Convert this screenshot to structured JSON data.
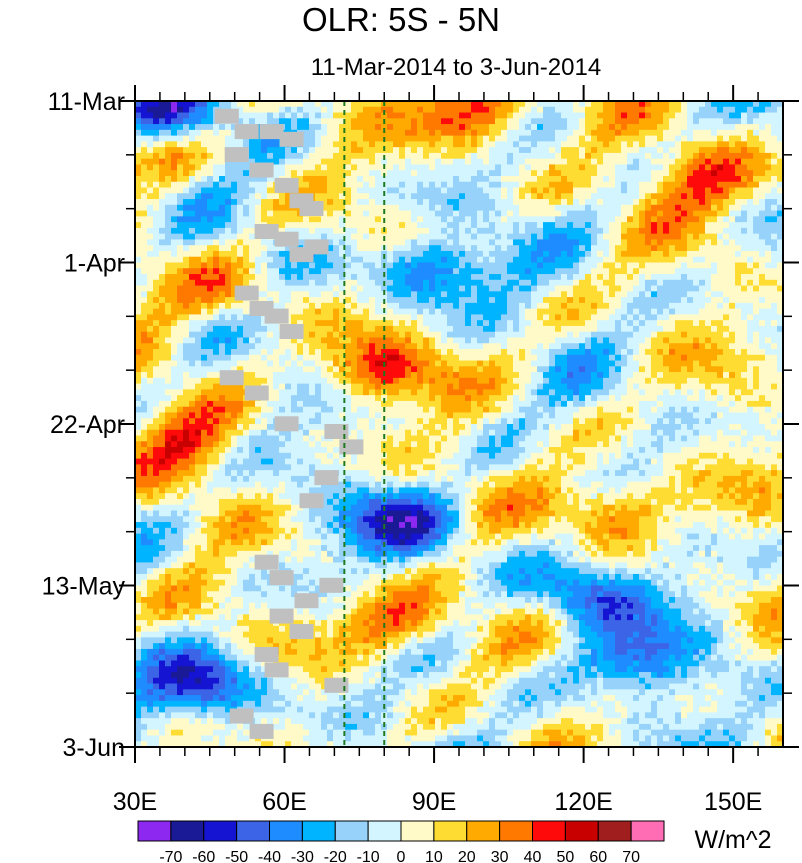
{
  "chart_data": {
    "type": "heatmap",
    "title": "OLR: 5S - 5N",
    "subtitle": "11-Mar-2014 to 3-Jun-2014",
    "x_axis": {
      "range": [
        30,
        160
      ],
      "ticks": [
        30,
        60,
        90,
        120,
        150
      ],
      "tick_labels": [
        "30E",
        "60E",
        "90E",
        "120E",
        "150E"
      ],
      "minor_ticks": [
        35,
        40,
        45,
        50,
        55,
        65,
        70,
        75,
        80,
        85,
        95,
        100,
        105,
        110,
        115,
        125,
        130,
        135,
        140,
        145,
        155
      ]
    },
    "y_axis": {
      "range_days": [
        0,
        84
      ],
      "direction": "time increases downward",
      "ticks": [
        0,
        21,
        42,
        63,
        84
      ],
      "tick_labels": [
        "11-Mar",
        "1-Apr",
        "22-Apr",
        "13-May",
        "3-Jun"
      ],
      "minor_ticks": [
        7,
        14,
        28,
        35,
        49,
        56,
        70,
        77
      ]
    },
    "reference_lines": [
      {
        "longitude": 72,
        "style": "dashed",
        "color": "#1e7a1e"
      },
      {
        "longitude": 80,
        "style": "dashed",
        "color": "#1e7a1e"
      }
    ],
    "colorbar": {
      "label": "W/m^2",
      "levels": [
        -70,
        -60,
        -50,
        -40,
        -30,
        -20,
        -10,
        0,
        10,
        20,
        30,
        40,
        50,
        60,
        70
      ],
      "level_labels": [
        "-70",
        "-60",
        "-50",
        "-40",
        "-30",
        "-20",
        "-10",
        "0",
        "10",
        "20",
        "30",
        "40",
        "50",
        "60",
        "70"
      ],
      "colors": [
        "#8c28f0",
        "#1a1a96",
        "#1414d2",
        "#3c64e6",
        "#1e8cff",
        "#00b4ff",
        "#96d2fa",
        "#d2f5ff",
        "#fffac8",
        "#ffdc32",
        "#ffaa00",
        "#ff7800",
        "#ff0a0a",
        "#c80000",
        "#a01e1e",
        "#ff6eb4"
      ]
    },
    "anomaly_field": {
      "description": "OLR anomaly (W/m^2), days since 11-Mar-2014 vs longitude; eastward-propagating bands",
      "features": [
        {
          "type": "suppressed",
          "lon": 98,
          "day": 1,
          "value": 55
        },
        {
          "type": "suppressed",
          "lon": 35,
          "day": 6,
          "value": 25
        },
        {
          "type": "suppressed",
          "lon": 145,
          "day": 10,
          "value": 40
        },
        {
          "type": "enhanced",
          "lon": 90,
          "day": 22,
          "value": -50
        },
        {
          "type": "enhanced",
          "lon": 35,
          "day": 2,
          "value": -55
        },
        {
          "type": "suppressed",
          "lon": 50,
          "day": 25,
          "value": 25
        },
        {
          "type": "suppressed",
          "lon": 78,
          "day": 35,
          "value": 45
        },
        {
          "type": "suppressed",
          "lon": 40,
          "day": 44,
          "value": 30
        },
        {
          "type": "suppressed",
          "lon": 125,
          "day": 53,
          "value": 45
        },
        {
          "type": "enhanced",
          "lon": 85,
          "day": 55,
          "value": -50
        },
        {
          "type": "enhanced",
          "lon": 120,
          "day": 64,
          "value": -45
        },
        {
          "type": "suppressed",
          "lon": 82,
          "day": 68,
          "value": 45
        },
        {
          "type": "enhanced",
          "lon": 45,
          "day": 76,
          "value": -55
        },
        {
          "type": "enhanced",
          "lon": 130,
          "day": 73,
          "value": -40
        }
      ]
    },
    "missing_data_color": "#c0c0c0"
  }
}
